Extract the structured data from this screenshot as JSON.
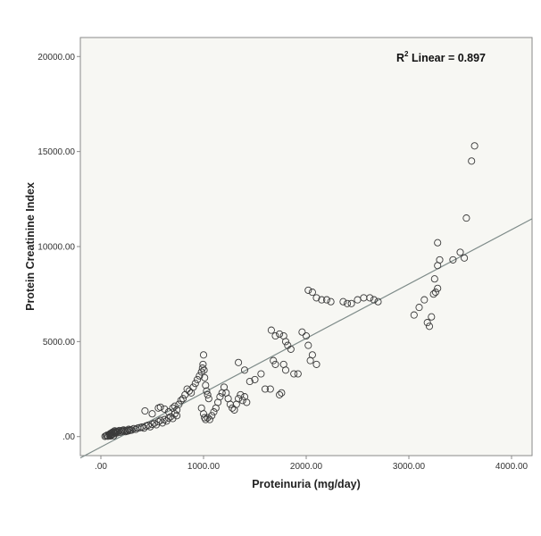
{
  "chart_data": {
    "type": "scatter",
    "xlabel": "Proteinuria (mg/day)",
    "ylabel": "Protein Creatinine Index",
    "xlim": [
      -200,
      4200
    ],
    "ylim": [
      -1000,
      21000
    ],
    "x_ticks": [
      0,
      1000,
      2000,
      3000,
      4000
    ],
    "y_ticks": [
      0,
      5000,
      10000,
      15000,
      20000
    ],
    "x_tick_labels": [
      ".00",
      "1000.00",
      "2000.00",
      "3000.00",
      "4000.00"
    ],
    "y_tick_labels": [
      ".00",
      "5000.00",
      "10000.00",
      "15000.00",
      "20000.00"
    ],
    "annotation": {
      "prefix": "R",
      "superscript": "2",
      "suffix": " Linear = 0.897"
    },
    "grid": false,
    "legend": "none",
    "marker": "open-circle",
    "colors": {
      "marker": "#3a3a3a",
      "fit_line": "#7f8c8a",
      "frame": "#8a8a8a",
      "plot_bg": "#f7f7f3"
    },
    "fit_line": {
      "slope": 2.86,
      "intercept": -550,
      "x_range": [
        -200,
        4200
      ]
    },
    "points": [
      [
        40,
        10
      ],
      [
        50,
        40
      ],
      [
        60,
        70
      ],
      [
        70,
        20
      ],
      [
        80,
        100
      ],
      [
        85,
        60
      ],
      [
        90,
        150
      ],
      [
        95,
        30
      ],
      [
        100,
        180
      ],
      [
        105,
        90
      ],
      [
        110,
        220
      ],
      [
        115,
        130
      ],
      [
        120,
        250
      ],
      [
        125,
        50
      ],
      [
        130,
        200
      ],
      [
        135,
        300
      ],
      [
        140,
        160
      ],
      [
        145,
        240
      ],
      [
        150,
        280
      ],
      [
        160,
        200
      ],
      [
        170,
        260
      ],
      [
        180,
        320
      ],
      [
        190,
        230
      ],
      [
        200,
        300
      ],
      [
        210,
        280
      ],
      [
        220,
        350
      ],
      [
        230,
        310
      ],
      [
        240,
        260
      ],
      [
        250,
        330
      ],
      [
        260,
        290
      ],
      [
        270,
        380
      ],
      [
        280,
        320
      ],
      [
        290,
        360
      ],
      [
        300,
        340
      ],
      [
        320,
        420
      ],
      [
        340,
        380
      ],
      [
        360,
        450
      ],
      [
        380,
        470
      ],
      [
        400,
        500
      ],
      [
        420,
        450
      ],
      [
        440,
        560
      ],
      [
        460,
        600
      ],
      [
        480,
        520
      ],
      [
        500,
        650
      ],
      [
        520,
        700
      ],
      [
        540,
        620
      ],
      [
        560,
        780
      ],
      [
        580,
        850
      ],
      [
        600,
        720
      ],
      [
        620,
        900
      ],
      [
        640,
        820
      ],
      [
        660,
        980
      ],
      [
        680,
        1050
      ],
      [
        700,
        950
      ],
      [
        720,
        1200
      ],
      [
        740,
        1100
      ],
      [
        430,
        1350
      ],
      [
        500,
        1200
      ],
      [
        560,
        1500
      ],
      [
        580,
        1550
      ],
      [
        620,
        1450
      ],
      [
        660,
        1300
      ],
      [
        700,
        1500
      ],
      [
        720,
        1600
      ],
      [
        740,
        1400
      ],
      [
        760,
        1700
      ],
      [
        780,
        1900
      ],
      [
        800,
        2000
      ],
      [
        820,
        2200
      ],
      [
        840,
        2500
      ],
      [
        860,
        2400
      ],
      [
        880,
        2300
      ],
      [
        900,
        2600
      ],
      [
        920,
        2800
      ],
      [
        940,
        3000
      ],
      [
        960,
        3200
      ],
      [
        980,
        3400
      ],
      [
        990,
        3600
      ],
      [
        995,
        3800
      ],
      [
        1000,
        4300
      ],
      [
        1005,
        3500
      ],
      [
        1010,
        3100
      ],
      [
        1020,
        2700
      ],
      [
        1030,
        2400
      ],
      [
        1040,
        2200
      ],
      [
        1050,
        2000
      ],
      [
        980,
        1500
      ],
      [
        1000,
        1200
      ],
      [
        1010,
        1000
      ],
      [
        1020,
        900
      ],
      [
        1040,
        1000
      ],
      [
        1060,
        900
      ],
      [
        1080,
        1100
      ],
      [
        1100,
        1300
      ],
      [
        1120,
        1500
      ],
      [
        1140,
        1800
      ],
      [
        1160,
        2100
      ],
      [
        1180,
        2300
      ],
      [
        1200,
        2600
      ],
      [
        1220,
        2300
      ],
      [
        1240,
        2000
      ],
      [
        1260,
        1700
      ],
      [
        1280,
        1500
      ],
      [
        1300,
        1400
      ],
      [
        1320,
        1700
      ],
      [
        1340,
        2000
      ],
      [
        1360,
        2200
      ],
      [
        1380,
        1900
      ],
      [
        1400,
        2100
      ],
      [
        1420,
        1800
      ],
      [
        1340,
        3900
      ],
      [
        1400,
        3500
      ],
      [
        1450,
        2900
      ],
      [
        1500,
        3000
      ],
      [
        1560,
        3300
      ],
      [
        1600,
        2500
      ],
      [
        1650,
        2500
      ],
      [
        1680,
        4000
      ],
      [
        1700,
        3800
      ],
      [
        1740,
        2200
      ],
      [
        1760,
        2300
      ],
      [
        1780,
        3800
      ],
      [
        1800,
        3500
      ],
      [
        1660,
        5600
      ],
      [
        1700,
        5300
      ],
      [
        1740,
        5400
      ],
      [
        1780,
        5300
      ],
      [
        1800,
        5000
      ],
      [
        1820,
        4800
      ],
      [
        1850,
        4600
      ],
      [
        1880,
        3300
      ],
      [
        1920,
        3300
      ],
      [
        1960,
        5500
      ],
      [
        2000,
        5300
      ],
      [
        2020,
        4800
      ],
      [
        2040,
        4000
      ],
      [
        2060,
        4300
      ],
      [
        2100,
        3800
      ],
      [
        2020,
        7700
      ],
      [
        2060,
        7600
      ],
      [
        2100,
        7300
      ],
      [
        2150,
        7200
      ],
      [
        2200,
        7200
      ],
      [
        2240,
        7100
      ],
      [
        2360,
        7100
      ],
      [
        2400,
        7000
      ],
      [
        2440,
        7000
      ],
      [
        2500,
        7200
      ],
      [
        2560,
        7300
      ],
      [
        2620,
        7300
      ],
      [
        2660,
        7200
      ],
      [
        2700,
        7100
      ],
      [
        3050,
        6400
      ],
      [
        3100,
        6800
      ],
      [
        3150,
        7200
      ],
      [
        3180,
        6000
      ],
      [
        3200,
        5800
      ],
      [
        3220,
        6300
      ],
      [
        3240,
        7500
      ],
      [
        3260,
        7600
      ],
      [
        3280,
        7800
      ],
      [
        3250,
        8300
      ],
      [
        3280,
        9000
      ],
      [
        3300,
        9300
      ],
      [
        3280,
        10200
      ],
      [
        3430,
        9300
      ],
      [
        3500,
        9700
      ],
      [
        3540,
        9400
      ],
      [
        3560,
        11500
      ],
      [
        3610,
        14500
      ],
      [
        3640,
        15300
      ]
    ]
  }
}
